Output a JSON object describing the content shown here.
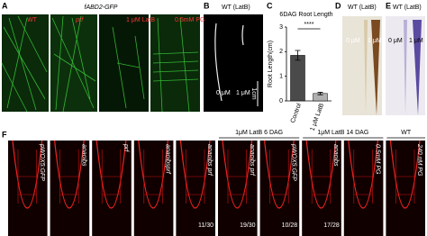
{
  "panel_letters": [
    "A",
    "B",
    "C",
    "D",
    "E",
    "F"
  ],
  "panel_a": {
    "title": "fABD2-GFP",
    "labels": [
      "WT",
      "prf",
      "1 μM LatB",
      "0.5mM PG"
    ]
  },
  "panel_b": {
    "title": "WT (LatB)",
    "labels": [
      "0 μM",
      "1 μM"
    ],
    "scale": "1cm"
  },
  "chart_data": {
    "type": "bar",
    "title": "6DAG Root Length",
    "y_label": "Root Length(cm)",
    "categories": [
      "Control",
      "1 μM LatB"
    ],
    "values": [
      1.85,
      0.3
    ],
    "errors": [
      0.2,
      0.05
    ],
    "colors": [
      "#4a4a4a",
      "#b0b0b0"
    ],
    "ylim": [
      0,
      3
    ],
    "yticks": [
      0,
      1,
      2,
      3
    ],
    "annotation": "****"
  },
  "panel_d": {
    "title": "WT (LatB)",
    "labels": [
      "0 μM",
      "1 μM"
    ]
  },
  "panel_e": {
    "title": "WT (LatB)",
    "labels": [
      "0 μM",
      "1 μM"
    ]
  },
  "panel_f": {
    "groups": [
      "1μM LatB 6 DAG",
      "1μM LatB 14 DAG",
      "WT"
    ],
    "images": [
      {
        "label": "pWOX5:GFP"
      },
      {
        "label": "anaoibs"
      },
      {
        "label": "prf"
      },
      {
        "label": "anaoibsprf"
      },
      {
        "label": "anaoibs prf",
        "fraction": "11/30"
      },
      {
        "label": "anaoibs prf",
        "fraction": "19/30"
      },
      {
        "label": "pWOX5:GFP",
        "fraction": "10/28"
      },
      {
        "label": "anaoibs",
        "fraction": "17/28"
      },
      {
        "label": "0.5mM PG"
      },
      {
        "label": "240 nM PG"
      }
    ]
  }
}
